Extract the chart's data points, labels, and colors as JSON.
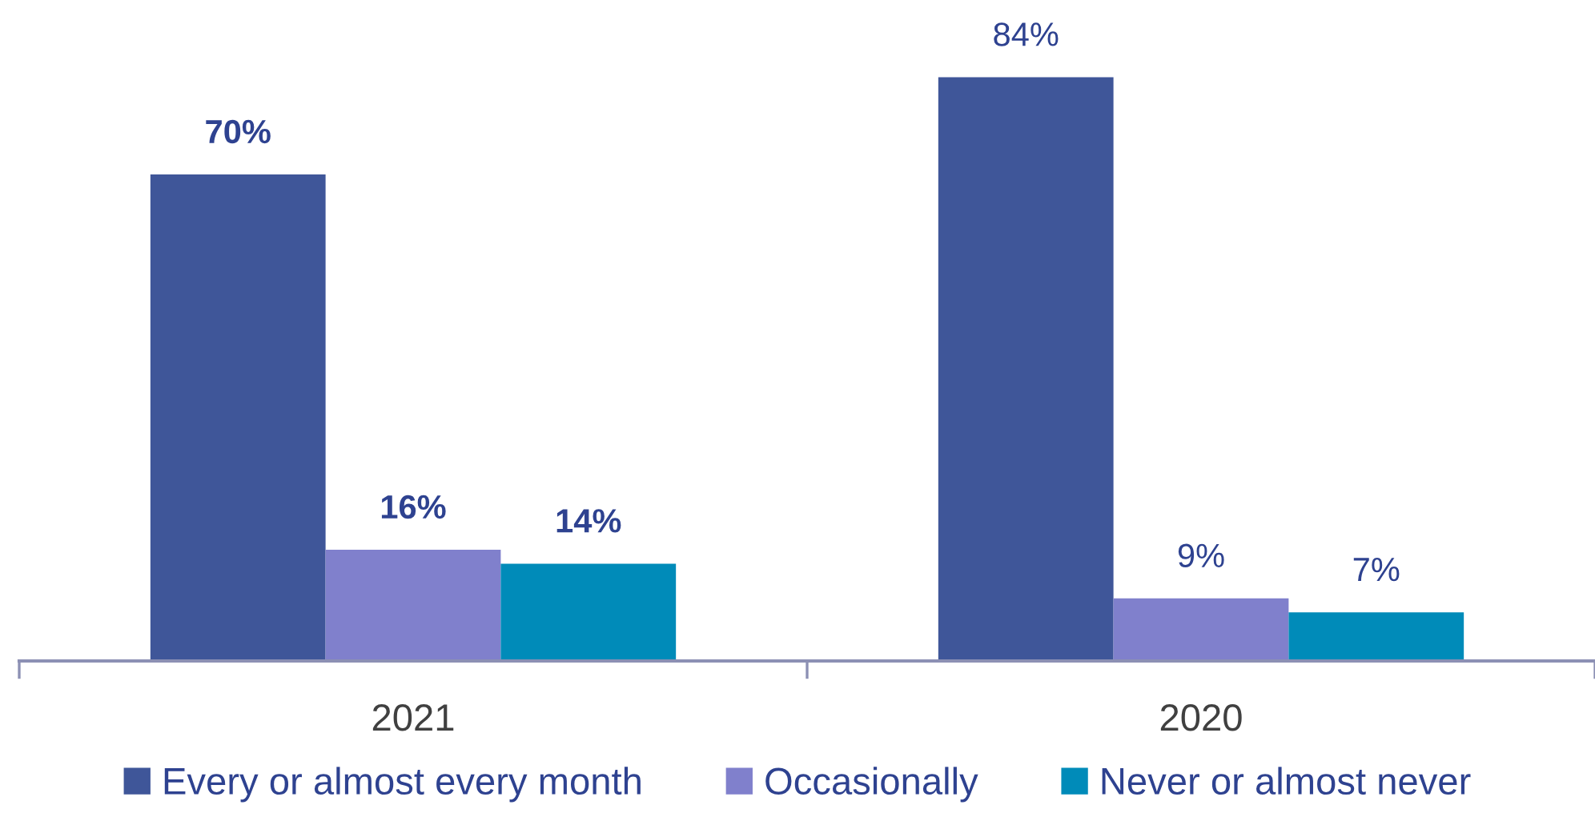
{
  "chart_data": {
    "type": "bar",
    "categories": [
      "2021",
      "2020"
    ],
    "series": [
      {
        "name": "Every or almost every month",
        "color": "#3f5699",
        "values": [
          70,
          84
        ],
        "value_labels": [
          "70%",
          "84%"
        ]
      },
      {
        "name": "Occasionally",
        "color": "#8080cc",
        "values": [
          16,
          9
        ],
        "value_labels": [
          "16%",
          "9%"
        ]
      },
      {
        "name": "Never or almost never",
        "color": "#008bb9",
        "values": [
          14,
          7
        ],
        "value_labels": [
          "14%",
          "7%"
        ]
      }
    ],
    "legend": "bottom"
  }
}
